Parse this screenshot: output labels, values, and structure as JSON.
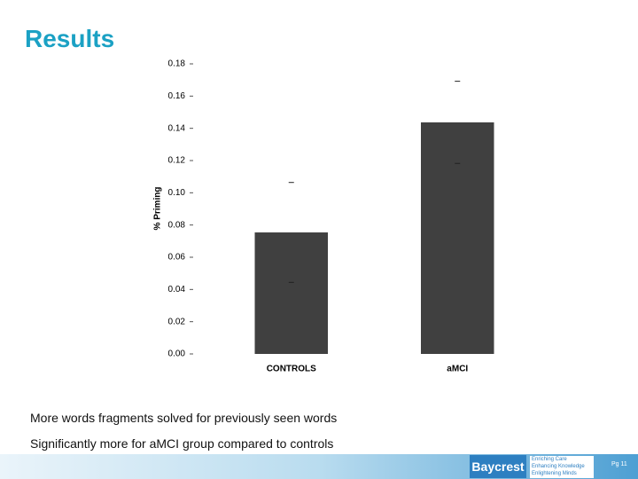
{
  "title": "Results",
  "chart_data": {
    "type": "bar",
    "y_label": "% Priming",
    "categories": [
      "CONTROLS",
      "aMCI"
    ],
    "values": [
      0.0754,
      0.1437
    ],
    "errors": [
      0.031,
      0.0255
    ],
    "color": "#404040",
    "ylim": [
      0,
      0.18
    ],
    "yticks": [
      {
        "value": 0,
        "label": "0.00"
      },
      {
        "value": 0.02,
        "label": "0.02"
      },
      {
        "value": 0.04,
        "label": "0.04"
      },
      {
        "value": 0.06,
        "label": "0.06"
      },
      {
        "value": 0.08,
        "label": "0.08"
      },
      {
        "value": 0.1,
        "label": "0.10"
      },
      {
        "value": 0.12,
        "label": "0.12"
      },
      {
        "value": 0.14,
        "label": "0.14"
      },
      {
        "value": 0.16,
        "label": "0.16"
      },
      {
        "value": 0.18,
        "label": "0.18"
      }
    ]
  },
  "notes": [
    "More words fragments solved for previously seen words",
    "Significantly more for aMCI group compared to controls"
  ],
  "footer": {
    "logo": "Baycrest",
    "tagline": [
      "Enriching Care",
      "Enhancing Knowledge",
      "Enlightening Minds"
    ],
    "page": "Pg 11"
  }
}
